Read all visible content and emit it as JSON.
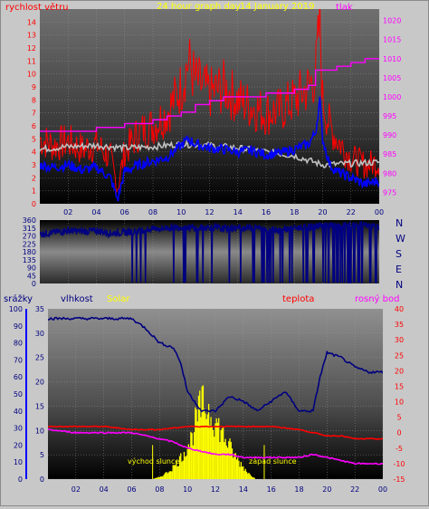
{
  "header": {
    "wind_label": "rychlost větru",
    "title": "24 hour graph day",
    "date": "14 January 2019",
    "pressure_label": "tlak"
  },
  "panel_mid": {
    "compass": [
      "N",
      "W",
      "S",
      "E",
      "N"
    ]
  },
  "panel_bottom": {
    "rain_label": "srážky",
    "humidity_label": "vlhkost",
    "solar_label": "Solar",
    "temp_label": "teplota",
    "dew_label": "rosný bod",
    "sunrise_label": "východ slunce",
    "sunset_label": "západ slunce"
  },
  "colors": {
    "wind_gust": "#ff0000",
    "wind_avg": "#0000ff",
    "wind_gray": "#c0c0c0",
    "pressure": "#ff00ff",
    "direction": "#000080",
    "humidity": "#000080",
    "temperature": "#ff0000",
    "dewpoint": "#ff00ff",
    "solar": "#ffff00"
  },
  "chart_data": [
    {
      "type": "line",
      "x_ticks": [
        "02",
        "04",
        "06",
        "08",
        "10",
        "12",
        "14",
        "16",
        "18",
        "20",
        "22",
        "00"
      ],
      "y_left_ticks": [
        0,
        1,
        2,
        3,
        4,
        5,
        6,
        7,
        8,
        9,
        10,
        11,
        12,
        13,
        14
      ],
      "y_right_ticks": [
        975,
        980,
        985,
        990,
        995,
        1000,
        1005,
        1010,
        1015,
        1020
      ],
      "ylim_left": [
        0,
        15
      ],
      "ylim_right": [
        972,
        1023
      ],
      "xlim": [
        0,
        24
      ],
      "series": [
        {
          "name": "rychlost větru",
          "key": "gust",
          "x": [
            0,
            1,
            2,
            3,
            4,
            5,
            5.5,
            6,
            7,
            8,
            9,
            10,
            10.5,
            11,
            12,
            13,
            14,
            15,
            16,
            17,
            18,
            19,
            19.5,
            19.8,
            20,
            20.5,
            21,
            22,
            23,
            24
          ],
          "values": [
            5,
            4.5,
            4.8,
            4.2,
            4.6,
            3.5,
            1.2,
            4,
            5.5,
            6,
            7,
            9,
            11,
            9.5,
            8.5,
            9,
            8,
            7.5,
            7,
            7.2,
            8,
            9,
            10,
            14,
            8,
            6,
            5,
            3.5,
            3,
            3.2
          ]
        },
        {
          "name": "wind_avg",
          "key": "avg",
          "x": [
            0,
            1,
            2,
            3,
            4,
            5,
            5.5,
            6,
            7,
            8,
            9,
            10,
            10.5,
            11,
            12,
            13,
            14,
            15,
            16,
            17,
            18,
            19,
            19.5,
            19.8,
            20,
            20.5,
            21,
            22,
            23,
            24
          ],
          "values": [
            3,
            2.8,
            3,
            2.6,
            2.8,
            2,
            0.3,
            2.5,
            3,
            3.3,
            3.6,
            4.5,
            5,
            4.6,
            4.3,
            4.2,
            4,
            4.1,
            3.8,
            3.9,
            4.2,
            4.6,
            5.5,
            8,
            5,
            3,
            2.5,
            2,
            1.5,
            1.8
          ]
        },
        {
          "name": "wind_gray",
          "key": "gray",
          "x": [
            0,
            2,
            4,
            6,
            8,
            10,
            12,
            14,
            16,
            18,
            20,
            22,
            24
          ],
          "values": [
            4.2,
            4.4,
            4.5,
            4.3,
            4.4,
            4.6,
            4.5,
            4.3,
            4.0,
            3.7,
            3.0,
            3.1,
            3.2
          ]
        },
        {
          "name": "tlak",
          "key": "pressure",
          "x": [
            0,
            2,
            4,
            6,
            8,
            9,
            10,
            11,
            12,
            13,
            14,
            16,
            18,
            19,
            19.5,
            20,
            21,
            22,
            23,
            24
          ],
          "values": [
            991,
            991,
            992,
            993,
            994,
            995,
            996,
            998,
            999,
            1000,
            1000,
            1001,
            1002,
            1003,
            1007,
            1007,
            1008,
            1009,
            1010,
            1010
          ]
        }
      ]
    },
    {
      "type": "line",
      "x_ticks": [
        "02",
        "04",
        "06",
        "08",
        "10",
        "12",
        "14",
        "16",
        "18",
        "20",
        "22",
        "00"
      ],
      "y_ticks": [
        0,
        45,
        90,
        135,
        180,
        225,
        270,
        315,
        360
      ],
      "ylim": [
        0,
        360
      ],
      "xlim": [
        0,
        24
      ],
      "series": [
        {
          "name": "direction",
          "x": [
            0,
            1,
            2,
            3,
            4,
            5,
            6,
            7,
            8,
            9,
            10,
            11,
            12,
            13,
            14,
            15,
            16,
            17,
            18,
            19,
            20,
            21,
            22,
            23,
            24
          ],
          "values": [
            280,
            290,
            300,
            295,
            300,
            285,
            290,
            300,
            310,
            315,
            320,
            315,
            320,
            310,
            315,
            320,
            310,
            305,
            315,
            320,
            330,
            325,
            335,
            330,
            320
          ]
        }
      ]
    },
    {
      "type": "line",
      "x_ticks": [
        "02",
        "04",
        "06",
        "08",
        "10",
        "12",
        "14",
        "16",
        "18",
        "20",
        "22",
        "00"
      ],
      "y_left_ticks": [
        0,
        10,
        20,
        30,
        40,
        50,
        60,
        70,
        80,
        90,
        100
      ],
      "y_left2_ticks": [
        0,
        5,
        10,
        15,
        20,
        25,
        30,
        35
      ],
      "y_right_ticks": [
        -15,
        -10,
        -5,
        0,
        5,
        10,
        15,
        20,
        25,
        30,
        35,
        40
      ],
      "ylim_left": [
        0,
        100
      ],
      "ylim_left2": [
        0,
        35
      ],
      "ylim_right": [
        -15,
        40
      ],
      "xlim": [
        0,
        24
      ],
      "series": [
        {
          "name": "vlhkost",
          "key": "humidity",
          "x": [
            0,
            1,
            2,
            3,
            4,
            5,
            6,
            7,
            8,
            9,
            9.5,
            10,
            11,
            12,
            13,
            14,
            15,
            16,
            17,
            18,
            19,
            19.5,
            20,
            21,
            22,
            23,
            24
          ],
          "values": [
            33,
            33,
            33,
            33,
            33,
            33,
            33,
            31,
            28,
            27,
            24,
            18,
            14,
            14,
            17,
            16,
            14,
            16,
            18,
            14,
            14,
            21,
            26,
            25,
            23,
            22,
            22
          ]
        },
        {
          "name": "teplota",
          "key": "temp",
          "x": [
            0,
            2,
            4,
            6,
            8,
            10,
            12,
            14,
            16,
            18,
            19,
            20,
            21,
            22,
            23,
            24
          ],
          "values": [
            2,
            2,
            2,
            1,
            1,
            2,
            2,
            2,
            2,
            1,
            0,
            -1,
            -1,
            -2,
            -2,
            -2
          ]
        },
        {
          "name": "rosný bod",
          "key": "dew",
          "x": [
            0,
            2,
            4,
            6,
            7,
            8,
            9,
            10,
            11,
            12,
            13,
            14,
            16,
            18,
            19,
            20,
            21,
            22,
            23,
            24
          ],
          "values": [
            1,
            0,
            0,
            0,
            -1,
            -2,
            -3,
            -5,
            -6,
            -7,
            -7,
            -8,
            -8,
            -8,
            -7,
            -8,
            -9,
            -10,
            -10,
            -10
          ]
        },
        {
          "name": "Solar",
          "key": "solar",
          "x": [
            7.5,
            8,
            8.5,
            9,
            9.5,
            10,
            10.3,
            10.6,
            11,
            11.5,
            12,
            12.5,
            13,
            13.5,
            14,
            14.5,
            15
          ],
          "values": [
            0,
            0.5,
            1.5,
            3,
            5,
            8,
            10,
            14,
            18,
            17,
            14,
            11,
            8,
            5,
            3,
            1,
            0
          ]
        }
      ]
    }
  ]
}
